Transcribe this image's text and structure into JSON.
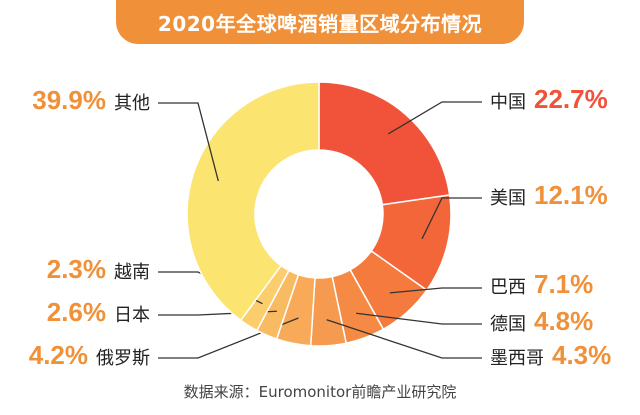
{
  "title": "2020年全球啤酒销量区域分布情况",
  "source": "数据来源：Euromonitor前瞻产业研究院",
  "chart_data": {
    "type": "pie",
    "donut": true,
    "title": "2020年全球啤酒销量区域分布情况",
    "unit": "%",
    "slices": [
      {
        "name": "中国",
        "value": 22.7,
        "label": "22.7%",
        "color": "#f0533a",
        "label_color": "#f0533a"
      },
      {
        "name": "美国",
        "value": 12.1,
        "label": "12.1%",
        "color": "#f26639",
        "label_color": "#f0913a"
      },
      {
        "name": "巴西",
        "value": 7.1,
        "label": "7.1%",
        "color": "#f47a3e",
        "label_color": "#f0913a"
      },
      {
        "name": "德国",
        "value": 4.8,
        "label": "4.8%",
        "color": "#f58a45",
        "label_color": "#f0913a"
      },
      {
        "name": "墨西哥",
        "value": 4.3,
        "label": "4.3%",
        "color": "#f69a50",
        "label_color": "#f0913a"
      },
      {
        "name": "俄罗斯",
        "value": 4.2,
        "label": "4.2%",
        "color": "#f8aa58",
        "label_color": "#f0913a"
      },
      {
        "name": "日本",
        "value": 2.6,
        "label": "2.6%",
        "color": "#f9bb62",
        "label_color": "#f0913a"
      },
      {
        "name": "越南",
        "value": 2.3,
        "label": "2.3%",
        "color": "#fbcd6c",
        "label_color": "#f0913a"
      },
      {
        "name": "其他",
        "value": 39.9,
        "label": "39.9%",
        "color": "#fce471",
        "label_color": "#f0913a"
      }
    ]
  }
}
